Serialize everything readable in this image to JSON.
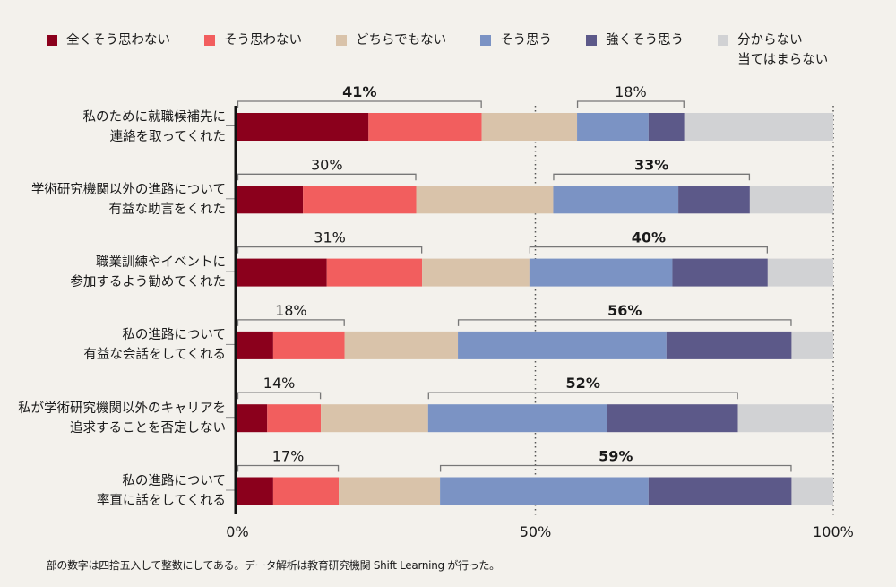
{
  "legend": [
    {
      "label": "全くそう思わない",
      "color": "#8b001c"
    },
    {
      "label": "そう思わない",
      "color": "#f25e5e"
    },
    {
      "label": "どちらでもない",
      "color": "#d9c3aa"
    },
    {
      "label": "そう思う",
      "color": "#7b93c4"
    },
    {
      "label": "強くそう思う",
      "color": "#5c5989"
    },
    {
      "label": "分からない\n当てはまらない",
      "color": "#d1d2d4"
    }
  ],
  "footnote": "一部の数字は四捨五入して整数にしてある。データ解析は教育研究機関 Shift Learning が行った。",
  "chart_data": {
    "type": "bar",
    "orientation": "horizontal",
    "stacked": true,
    "xlim": [
      0,
      100
    ],
    "x_ticks": [
      "0%",
      "50%",
      "100%"
    ],
    "gridlines": "dotted at 50% and 100%",
    "categories": [
      "私のために就職候補先に\n連絡を取ってくれた",
      "学術研究機関以外の進路について\n有益な助言をくれた",
      "職業訓練やイベントに\n参加するよう勧めてくれた",
      "私の進路について\n有益な会話をしてくれる",
      "私が学術研究機関以外のキャリアを\n追求することを否定しない",
      "私の進路について\n率直に話をしてくれる"
    ],
    "series": [
      {
        "name": "全くそう思わない",
        "values": [
          22,
          11,
          15,
          6,
          5,
          6
        ]
      },
      {
        "name": "そう思わない",
        "values": [
          19,
          19,
          16,
          12,
          9,
          11
        ]
      },
      {
        "name": "どちらでもない",
        "values": [
          16,
          23,
          18,
          19,
          18,
          17
        ]
      },
      {
        "name": "そう思う",
        "values": [
          12,
          21,
          24,
          35,
          30,
          35
        ]
      },
      {
        "name": "強くそう思う",
        "values": [
          6,
          12,
          16,
          21,
          22,
          24
        ]
      },
      {
        "name": "分からない 当てはまらない",
        "values": [
          25,
          14,
          11,
          7,
          16,
          7
        ]
      }
    ],
    "annotations": [
      {
        "disagree": "41%",
        "disagree_bold": true,
        "agree": "18%",
        "agree_bold": false
      },
      {
        "disagree": "30%",
        "disagree_bold": false,
        "agree": "33%",
        "agree_bold": true
      },
      {
        "disagree": "31%",
        "disagree_bold": false,
        "agree": "40%",
        "agree_bold": true
      },
      {
        "disagree": "18%",
        "disagree_bold": false,
        "agree": "56%",
        "agree_bold": true
      },
      {
        "disagree": "14%",
        "disagree_bold": false,
        "agree": "52%",
        "agree_bold": true
      },
      {
        "disagree": "17%",
        "disagree_bold": false,
        "agree": "59%",
        "agree_bold": true
      }
    ]
  }
}
